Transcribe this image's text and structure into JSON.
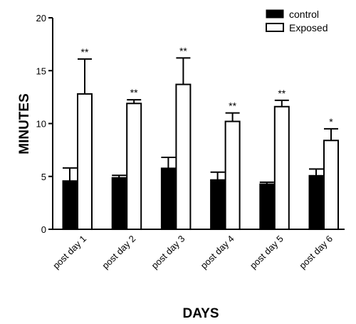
{
  "chart_data": {
    "type": "bar",
    "xlabel": "DAYS",
    "ylabel": "MINUTES",
    "ylim": [
      0,
      20
    ],
    "yticks": [
      0,
      5,
      10,
      15,
      20
    ],
    "categories": [
      "post day 1",
      "post day 2",
      "post day 3",
      "post day 4",
      "post day 5",
      "post day 6"
    ],
    "series": [
      {
        "name": "control",
        "color": "#000000",
        "fill": "solid-black",
        "values": [
          4.6,
          4.9,
          5.8,
          4.7,
          4.3,
          5.1
        ],
        "errors": [
          1.2,
          0.2,
          1.0,
          0.7,
          0.15,
          0.6
        ],
        "significance": [
          "",
          "",
          "",
          "",
          "",
          ""
        ]
      },
      {
        "name": "Exposed",
        "color": "#ffffff",
        "fill": "white-outlined",
        "values": [
          12.8,
          11.9,
          13.7,
          10.2,
          11.6,
          8.4
        ],
        "errors": [
          3.3,
          0.35,
          2.5,
          0.8,
          0.6,
          1.1
        ],
        "significance": [
          "**",
          "**",
          "**",
          "**",
          "**",
          "*"
        ]
      }
    ],
    "legend_position": "top-right",
    "grid": false
  }
}
